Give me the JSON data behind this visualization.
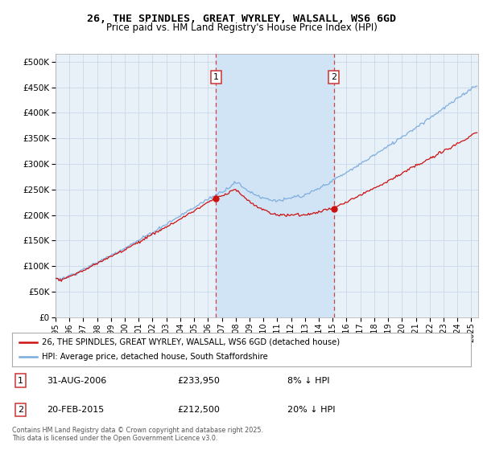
{
  "title": "26, THE SPINDLES, GREAT WYRLEY, WALSALL, WS6 6GD",
  "subtitle": "Price paid vs. HM Land Registry's House Price Index (HPI)",
  "yticks": [
    0,
    50000,
    100000,
    150000,
    200000,
    250000,
    300000,
    350000,
    400000,
    450000,
    500000
  ],
  "ylim": [
    0,
    515000
  ],
  "xlim_start": 1995.0,
  "xlim_end": 2025.5,
  "background_color": "#ffffff",
  "plot_bg_color": "#e8f0f8",
  "shade_color": "#d0e4f5",
  "grid_color": "#c8d8e8",
  "hpi_color": "#7aabdd",
  "price_color": "#cc1111",
  "dashed_line_color": "#cc4444",
  "sale1_x": 2006.583,
  "sale2_x": 2015.083,
  "sale1_price": 233950,
  "sale2_price": 212500,
  "marker1_date": "31-AUG-2006",
  "marker1_price": "£233,950",
  "marker1_hpi": "8% ↓ HPI",
  "marker2_date": "20-FEB-2015",
  "marker2_price": "£212,500",
  "marker2_hpi": "20% ↓ HPI",
  "legend_line1": "26, THE SPINDLES, GREAT WYRLEY, WALSALL, WS6 6GD (detached house)",
  "legend_line2": "HPI: Average price, detached house, South Staffordshire",
  "footnote": "Contains HM Land Registry data © Crown copyright and database right 2025.\nThis data is licensed under the Open Government Licence v3.0.",
  "xtick_years": [
    1995,
    1996,
    1997,
    1998,
    1999,
    2000,
    2001,
    2002,
    2003,
    2004,
    2005,
    2006,
    2007,
    2008,
    2009,
    2010,
    2011,
    2012,
    2013,
    2014,
    2015,
    2016,
    2017,
    2018,
    2019,
    2020,
    2021,
    2022,
    2023,
    2024,
    2025
  ]
}
